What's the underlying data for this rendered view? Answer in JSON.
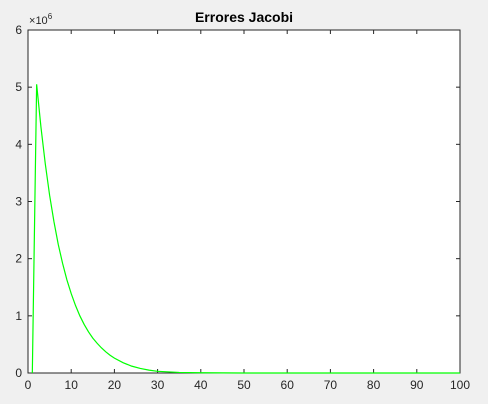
{
  "chart_data": {
    "type": "line",
    "title": "Errores Jacobi",
    "xlabel": "",
    "ylabel": "",
    "xlim": [
      0,
      100
    ],
    "ylim": [
      0,
      6
    ],
    "y_multiplier_base": "10",
    "y_multiplier_exponent": "6",
    "x_ticks": [
      0,
      10,
      20,
      30,
      40,
      50,
      60,
      70,
      80,
      90,
      100
    ],
    "y_ticks": [
      0,
      1,
      2,
      3,
      4,
      5,
      6
    ],
    "grid": false,
    "series": [
      {
        "color": "#00ff00",
        "x": [
          1,
          2,
          3,
          4,
          5,
          6,
          7,
          8,
          9,
          10,
          11,
          12,
          13,
          14,
          15,
          16,
          17,
          18,
          19,
          20,
          22,
          24,
          26,
          28,
          30,
          35,
          40,
          50,
          60,
          70,
          80,
          90,
          100
        ],
        "y": [
          0,
          5.05,
          4.3,
          3.66,
          3.11,
          2.65,
          2.25,
          1.92,
          1.63,
          1.39,
          1.18,
          1.0,
          0.85,
          0.72,
          0.61,
          0.52,
          0.44,
          0.37,
          0.31,
          0.26,
          0.18,
          0.12,
          0.08,
          0.05,
          0.03,
          0.01,
          0.004,
          0.0005,
          0.0001,
          0,
          0,
          0,
          0
        ]
      }
    ]
  }
}
